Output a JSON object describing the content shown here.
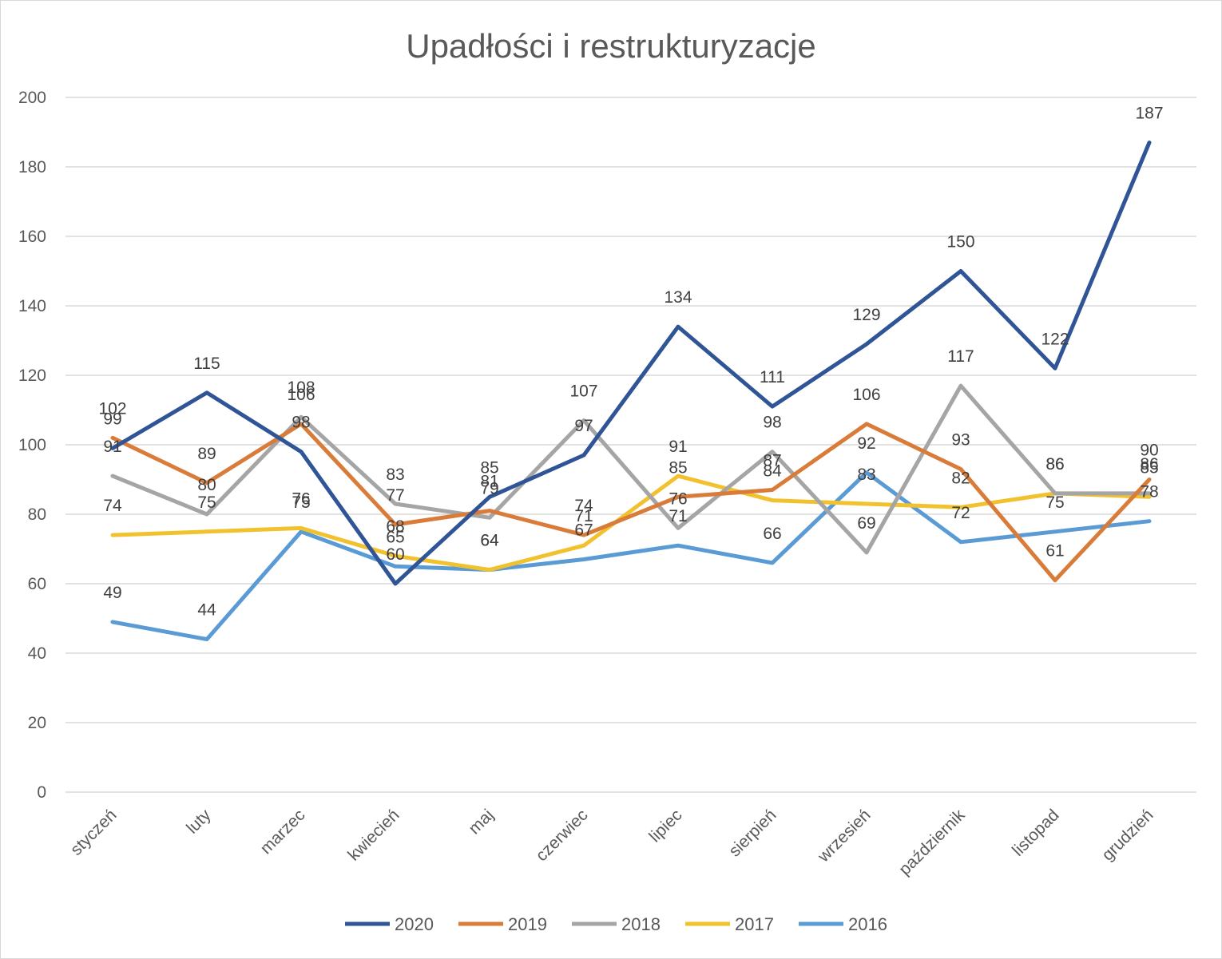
{
  "chart_data": {
    "type": "line",
    "title": "Upadłości i restrukturyzacje",
    "xlabel": "",
    "ylabel": "",
    "ylim": [
      0,
      200
    ],
    "yticks": [
      0,
      20,
      40,
      60,
      80,
      100,
      120,
      140,
      160,
      180,
      200
    ],
    "grid": true,
    "legend_position": "bottom",
    "categories": [
      "styczeń",
      "luty",
      "marzec",
      "kwiecień",
      "maj",
      "czerwiec",
      "lipiec",
      "sierpień",
      "wrzesień",
      "październik",
      "listopad",
      "grudzień"
    ],
    "series": [
      {
        "name": "2020",
        "color": "#2f5597",
        "values": [
          99,
          115,
          98,
          60,
          85,
          97,
          134,
          111,
          129,
          150,
          122,
          187
        ]
      },
      {
        "name": "2019",
        "color": "#d97c3a",
        "values": [
          102,
          89,
          106,
          77,
          81,
          74,
          85,
          87,
          106,
          93,
          61,
          90
        ]
      },
      {
        "name": "2018",
        "color": "#a5a5a5",
        "values": [
          91,
          80,
          108,
          83,
          79,
          107,
          76,
          98,
          69,
          117,
          86,
          86
        ]
      },
      {
        "name": "2017",
        "color": "#f2c12e",
        "values": [
          74,
          75,
          76,
          68,
          64,
          71,
          91,
          84,
          83,
          82,
          86,
          85
        ]
      },
      {
        "name": "2016",
        "color": "#5b9bd5",
        "values": [
          49,
          44,
          75,
          65,
          64,
          67,
          71,
          66,
          92,
          72,
          75,
          78
        ]
      }
    ]
  }
}
